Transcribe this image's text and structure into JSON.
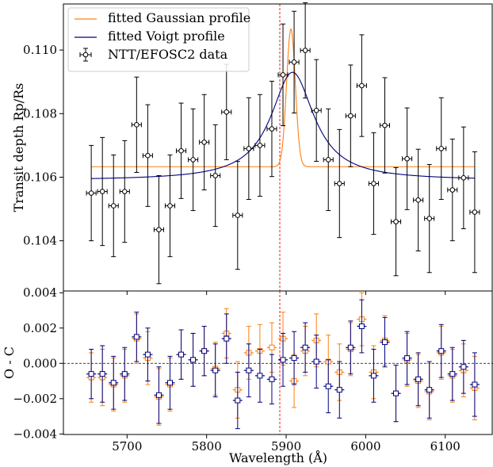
{
  "chart_data": [
    {
      "type": "scatter",
      "panel": "transit-depth",
      "ylabel": "Transit depth Rp/Rs",
      "xlabel": "",
      "xlim": [
        5620,
        6160
      ],
      "ylim": [
        0.10242,
        0.11145
      ],
      "yticks": [
        0.104,
        0.106,
        0.108,
        0.11
      ],
      "ytick_labels": [
        "0.104",
        "0.106",
        "0.108",
        "0.110"
      ],
      "xticks": [
        5700,
        5800,
        5900,
        6000,
        6100
      ],
      "legend": {
        "placement": "top-left",
        "entries": [
          "fitted Gaussian profile",
          "fitted Voigt profile",
          "NTT/EFOSC2 data"
        ]
      },
      "reference_line_x": 5892,
      "series": [
        {
          "name": "NTT/EFOSC2 data",
          "color": "#000000",
          "x_err": 6,
          "x": [
            5655,
            5669,
            5683,
            5697,
            5712,
            5726,
            5740,
            5754,
            5768,
            5783,
            5797,
            5811,
            5825,
            5839,
            5853,
            5867,
            5882,
            5896,
            5910,
            5924,
            5938,
            5953,
            5967,
            5981,
            5995,
            6010,
            6024,
            6038,
            6052,
            6066,
            6080,
            6095,
            6109,
            6123,
            6137
          ],
          "y": [
            0.1055,
            0.10555,
            0.1051,
            0.10555,
            0.10765,
            0.10668,
            0.10435,
            0.1051,
            0.10683,
            0.10655,
            0.1071,
            0.10605,
            0.10805,
            0.1048,
            0.1069,
            0.107,
            0.10752,
            0.10922,
            0.10962,
            0.10999,
            0.1081,
            0.10655,
            0.1058,
            0.10793,
            0.10888,
            0.1058,
            0.10763,
            0.1046,
            0.10658,
            0.10528,
            0.1047,
            0.1069,
            0.1056,
            0.10598,
            0.1049
          ],
          "y_err": [
            0.0015,
            0.0017,
            0.0016,
            0.0016,
            0.0015,
            0.0016,
            0.0017,
            0.0016,
            0.0015,
            0.0016,
            0.0015,
            0.0016,
            0.0015,
            0.0017,
            0.0016,
            0.0016,
            0.0015,
            0.0016,
            0.0016,
            0.0015,
            0.0016,
            0.0016,
            0.0017,
            0.0016,
            0.0016,
            0.0016,
            0.0015,
            0.0017,
            0.0016,
            0.0016,
            0.0017,
            0.0016,
            0.0016,
            0.0016,
            0.0019
          ]
        },
        {
          "name": "fitted Gaussian profile",
          "color": "#ff7f0e",
          "baseline": 0.10633,
          "center": 5906,
          "amplitude": 0.00433,
          "sigma": 5.5
        },
        {
          "name": "fitted Voigt profile",
          "color": "#00007f",
          "baseline": 0.1059,
          "center": 5908,
          "amplitude": 0.0034,
          "hwhm": 33
        }
      ]
    },
    {
      "type": "scatter",
      "panel": "residuals",
      "ylabel": "O - C",
      "xlabel": "Wavelength (Å)",
      "xlim": [
        5620,
        6160
      ],
      "ylim": [
        -0.00403,
        0.0041
      ],
      "yticks": [
        -0.004,
        -0.002,
        0.0,
        0.002,
        0.004
      ],
      "ytick_labels": [
        "−0.004",
        "−0.002",
        "0.000",
        "0.002",
        "0.004"
      ],
      "xticks": [
        5700,
        5800,
        5900,
        6000,
        6100
      ],
      "xtick_labels": [
        "5700",
        "5800",
        "5900",
        "6000",
        "6100"
      ],
      "zero_line": true,
      "reference_line_x": 5892,
      "series": [
        {
          "name": "Gaussian residuals",
          "color": "#ff7f0e",
          "x_err": 6,
          "x": [
            5655,
            5669,
            5683,
            5697,
            5712,
            5726,
            5740,
            5754,
            5768,
            5783,
            5797,
            5811,
            5825,
            5839,
            5853,
            5867,
            5882,
            5896,
            5910,
            5924,
            5938,
            5953,
            5967,
            5981,
            5995,
            6010,
            6024,
            6038,
            6052,
            6066,
            6080,
            6095,
            6109,
            6123,
            6137
          ],
          "y": [
            -0.0008,
            -0.0008,
            -0.0012,
            -0.0007,
            0.0014,
            0.0003,
            -0.0019,
            -0.0012,
            0.0005,
            0.0002,
            0.0007,
            -0.0003,
            0.0017,
            -0.0015,
            0.0006,
            0.0007,
            0.0009,
            0.0014,
            -0.001,
            0.0007,
            0.0013,
            0.0001,
            -0.0005,
            0.0008,
            0.0025,
            -0.0005,
            0.0013,
            -0.0017,
            0.0002,
            -0.001,
            -0.0016,
            0.0006,
            -0.0007,
            -0.0004,
            -0.0014
          ],
          "y_err": [
            0.0014,
            0.0016,
            0.0015,
            0.0015,
            0.0014,
            0.0015,
            0.0016,
            0.0015,
            0.0014,
            0.0015,
            0.0014,
            0.0015,
            0.0014,
            0.0016,
            0.0015,
            0.0015,
            0.0014,
            0.0015,
            0.0015,
            0.0014,
            0.0015,
            0.0015,
            0.0016,
            0.0015,
            0.0015,
            0.0015,
            0.0014,
            0.0016,
            0.0015,
            0.0015,
            0.0016,
            0.0015,
            0.0015,
            0.0015,
            0.0018
          ]
        },
        {
          "name": "Voigt residuals",
          "color": "#00007f",
          "x_err": 6,
          "x": [
            5655,
            5669,
            5683,
            5697,
            5712,
            5726,
            5740,
            5754,
            5768,
            5783,
            5797,
            5811,
            5825,
            5839,
            5853,
            5867,
            5882,
            5896,
            5910,
            5924,
            5938,
            5953,
            5967,
            5981,
            5995,
            6010,
            6024,
            6038,
            6052,
            6066,
            6080,
            6095,
            6109,
            6123,
            6137
          ],
          "y": [
            -0.0006,
            -0.0006,
            -0.0011,
            -0.0006,
            0.0015,
            0.0005,
            -0.0018,
            -0.0011,
            0.0005,
            0.0002,
            0.0007,
            -0.0004,
            0.0014,
            -0.0021,
            -0.0004,
            -0.0007,
            -0.0009,
            0.0002,
            0.0003,
            0.0009,
            0.0001,
            -0.0013,
            -0.0015,
            0.0009,
            0.0021,
            -0.0007,
            0.0012,
            -0.0017,
            0.0003,
            -0.0009,
            -0.0015,
            0.0007,
            -0.0006,
            -0.0002,
            -0.0012
          ],
          "y_err": [
            0.0014,
            0.0016,
            0.0015,
            0.0015,
            0.0014,
            0.0015,
            0.0016,
            0.0015,
            0.0014,
            0.0015,
            0.0014,
            0.0015,
            0.0014,
            0.0016,
            0.0015,
            0.0015,
            0.0014,
            0.0015,
            0.0015,
            0.0014,
            0.0015,
            0.0015,
            0.0016,
            0.0015,
            0.0015,
            0.0015,
            0.0014,
            0.0016,
            0.0015,
            0.0015,
            0.0016,
            0.0015,
            0.0015,
            0.0015,
            0.0018
          ]
        }
      ]
    }
  ]
}
